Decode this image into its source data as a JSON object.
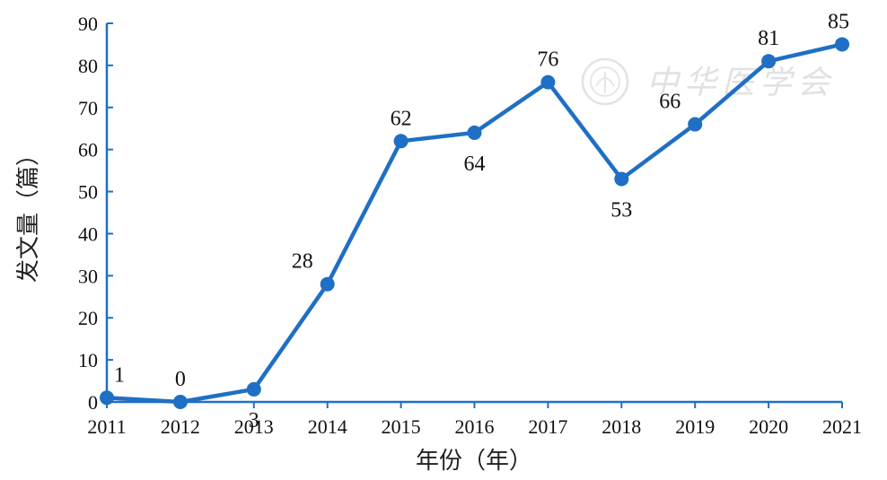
{
  "chart_data": {
    "type": "line",
    "x": [
      2011,
      2012,
      2013,
      2014,
      2015,
      2016,
      2017,
      2018,
      2019,
      2020,
      2021
    ],
    "values": [
      1,
      0,
      3,
      28,
      62,
      64,
      76,
      53,
      66,
      81,
      85
    ],
    "xlabel": "年份（年）",
    "ylabel": "发文量（篇）",
    "ylim": [
      0,
      90
    ],
    "yticks": [
      0,
      10,
      20,
      30,
      40,
      50,
      60,
      70,
      80,
      90
    ],
    "grid": false,
    "legend": "none",
    "color": "#1f6fc4"
  },
  "watermark": {
    "text": "中华医学会"
  }
}
